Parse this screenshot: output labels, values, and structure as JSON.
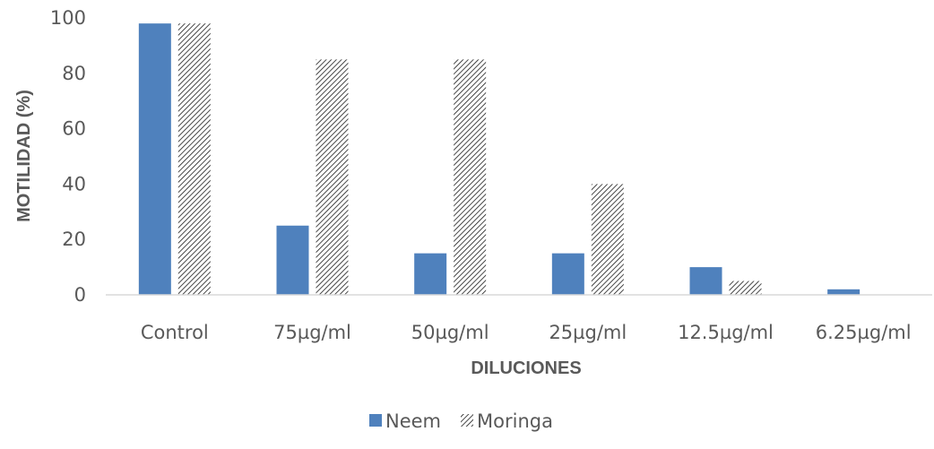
{
  "chart_data": {
    "type": "bar",
    "title": "",
    "xlabel": "DILUCIONES",
    "ylabel": "MOTILIDAD (%)",
    "categories": [
      "Control",
      "75µg/ml",
      "50µg/ml",
      "25µg/ml",
      "12.5µg/ml",
      "6.25µg/ml"
    ],
    "series": [
      {
        "name": "Neem",
        "values": [
          98,
          25,
          15,
          15,
          10,
          2
        ],
        "color": "#4f81bd",
        "fill": "solid"
      },
      {
        "name": "Moringa",
        "values": [
          98,
          85,
          85,
          40,
          5,
          0
        ],
        "color": "#1a1a1a",
        "fill": "hatched"
      }
    ],
    "ylim": [
      0,
      100
    ],
    "yticks": [
      0,
      20,
      40,
      60,
      80,
      100
    ],
    "grid": false,
    "legend_position": "bottom"
  }
}
